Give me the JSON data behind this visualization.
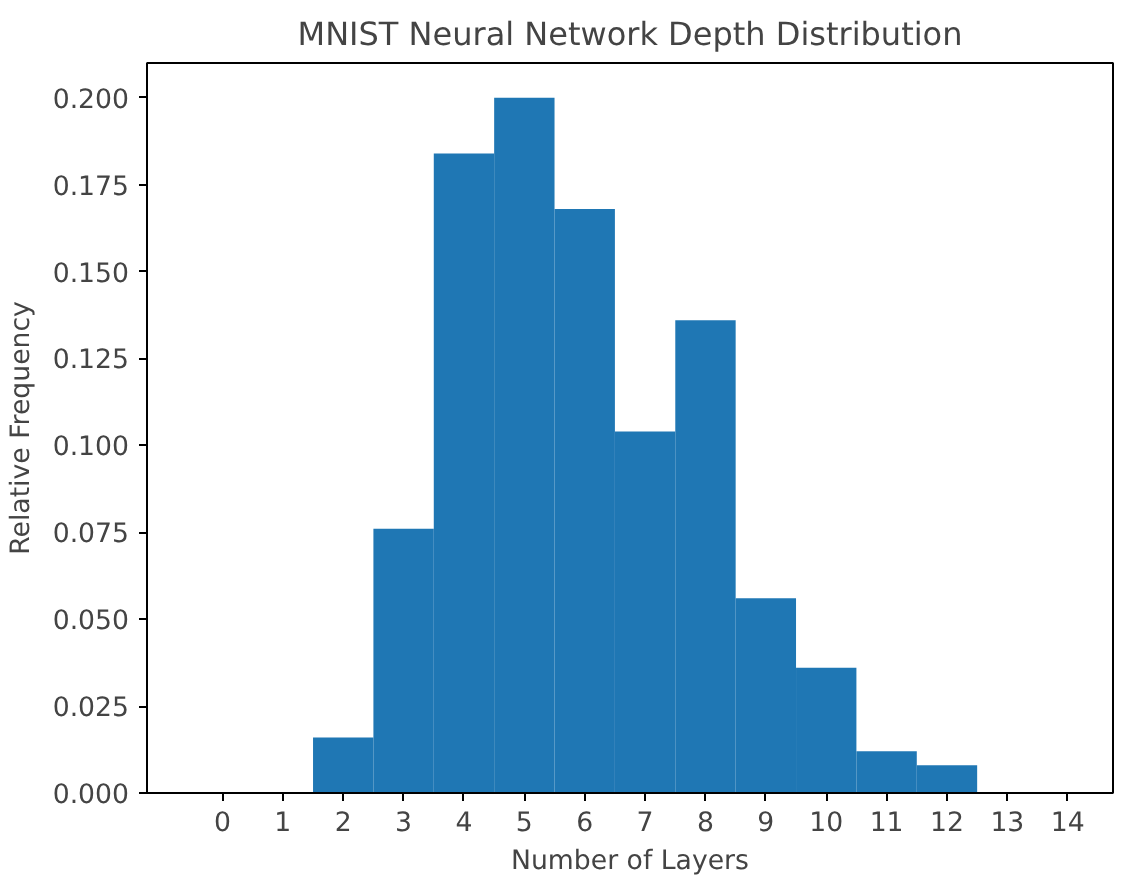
{
  "chart_data": {
    "type": "histogram",
    "title": "MNIST Neural Network Depth Distribution",
    "xlabel": "Number of Layers",
    "ylabel": "Relative Frequency",
    "bins": [
      1.5,
      2.5,
      3.5,
      4.5,
      5.5,
      6.5,
      7.5,
      8.5,
      9.5,
      10.5,
      11.5,
      12.5
    ],
    "values": [
      0.016,
      0.076,
      0.184,
      0.2,
      0.168,
      0.104,
      0.136,
      0.056,
      0.036,
      0.012,
      0.008
    ],
    "color": "#1f77b4",
    "xlim": [
      -1.25,
      14.75
    ],
    "xticks": [
      0,
      1,
      2,
      3,
      4,
      5,
      6,
      7,
      8,
      9,
      10,
      11,
      12,
      13,
      14
    ],
    "ylim": [
      0,
      0.21
    ],
    "yticks": [
      {
        "value": 0,
        "label": "0.000"
      },
      {
        "value": 0.025,
        "label": "0.025"
      },
      {
        "value": 0.05,
        "label": "0.050"
      },
      {
        "value": 0.075,
        "label": "0.075"
      },
      {
        "value": 0.1,
        "label": "0.100"
      },
      {
        "value": 0.125,
        "label": "0.125"
      },
      {
        "value": 0.15,
        "label": "0.150"
      },
      {
        "value": 0.175,
        "label": "0.175"
      },
      {
        "value": 0.2,
        "label": "0.200"
      }
    ],
    "grid": false
  }
}
